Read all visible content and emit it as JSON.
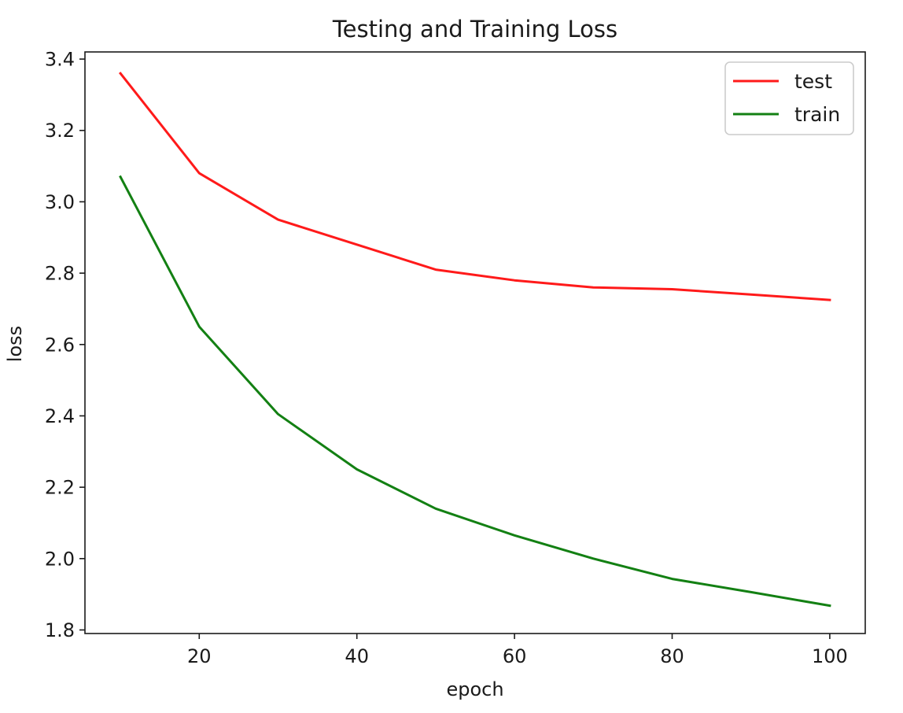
{
  "chart_data": {
    "type": "line",
    "title": "Testing and Training Loss",
    "xlabel": "epoch",
    "ylabel": "loss",
    "xlim": [
      5.5,
      104.5
    ],
    "ylim": [
      1.79,
      3.42
    ],
    "xticks": [
      20,
      40,
      60,
      80,
      100
    ],
    "yticks": [
      1.8,
      2.0,
      2.2,
      2.4,
      2.6,
      2.8,
      3.0,
      3.2,
      3.4
    ],
    "xtick_labels": [
      "20",
      "40",
      "60",
      "80",
      "100"
    ],
    "ytick_labels": [
      "1.8",
      "2.0",
      "2.2",
      "2.4",
      "2.6",
      "2.8",
      "3.0",
      "3.2",
      "3.4"
    ],
    "grid": false,
    "legend_position": "top-right",
    "x": [
      10,
      20,
      30,
      40,
      50,
      60,
      70,
      80,
      90,
      100
    ],
    "series": [
      {
        "name": "test",
        "color": "#ff1a1a",
        "values": [
          3.36,
          3.08,
          2.95,
          2.88,
          2.81,
          2.78,
          2.76,
          2.755,
          2.74,
          2.725
        ]
      },
      {
        "name": "train",
        "color": "#138013",
        "values": [
          3.07,
          2.65,
          2.405,
          2.25,
          2.14,
          2.065,
          2.0,
          1.943,
          1.906,
          1.868
        ]
      }
    ]
  }
}
